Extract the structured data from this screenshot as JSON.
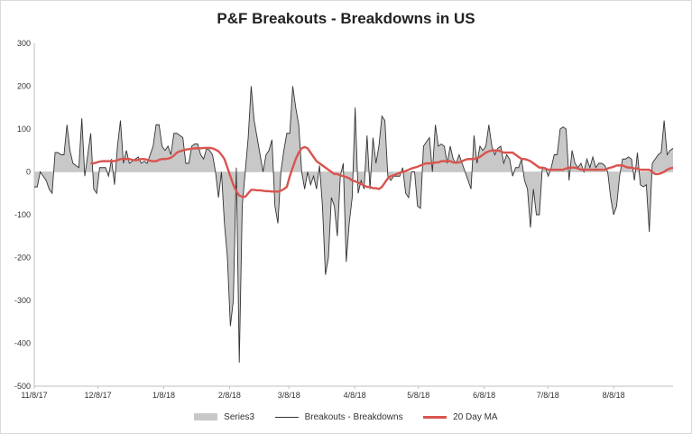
{
  "chart_data": {
    "type": "area",
    "title": "P&F Breakouts - Breakdowns in US",
    "xlabel": "",
    "ylabel": "",
    "ylim": [
      -500,
      300
    ],
    "yticks": [
      300,
      200,
      100,
      0,
      -100,
      -200,
      -300,
      -400,
      -500
    ],
    "xticks": [
      "11/8/17",
      "12/8/17",
      "1/8/18",
      "2/8/18",
      "3/8/18",
      "4/8/18",
      "5/8/18",
      "6/8/18",
      "7/8/18",
      "8/8/18"
    ],
    "x_start": "11/8/17",
    "x_end": "9/5/18",
    "grid": false,
    "legend_position": "bottom",
    "colors": {
      "area": "#c8c8c8",
      "line": "#333333",
      "ma": "#d9544f"
    },
    "series": [
      {
        "name": "Series3",
        "role": "area",
        "values": [
          -35,
          -35,
          0,
          -10,
          -20,
          -40,
          -50,
          45,
          45,
          40,
          40,
          110,
          50,
          20,
          15,
          10,
          125,
          -10,
          40,
          90,
          -40,
          -50,
          10,
          10,
          10,
          -10,
          30,
          -30,
          60,
          120,
          20,
          50,
          20,
          25,
          30,
          35,
          20,
          25,
          20,
          40,
          60,
          110,
          110,
          60,
          50,
          60,
          40,
          90,
          90,
          85,
          80,
          20,
          20,
          60,
          65,
          65,
          40,
          30,
          55,
          50,
          40,
          0,
          -60,
          0,
          -120,
          -200,
          -360,
          -300,
          10,
          -445,
          -80,
          0,
          80,
          200,
          120,
          80,
          40,
          0,
          40,
          50,
          75,
          -80,
          -120,
          0,
          50,
          90,
          90,
          200,
          150,
          110,
          0,
          -40,
          0,
          -30,
          -10,
          -40,
          15,
          -80,
          -240,
          -200,
          -60,
          -80,
          -150,
          -10,
          20,
          -210,
          -120,
          -60,
          150,
          -50,
          -20,
          -40,
          85,
          -40,
          80,
          20,
          60,
          130,
          120,
          -10,
          -20,
          -10,
          -10,
          -10,
          10,
          -50,
          -60,
          0,
          0,
          -80,
          -85,
          60,
          70,
          80,
          0,
          110,
          60,
          65,
          60,
          20,
          60,
          30,
          20,
          40,
          20,
          0,
          -20,
          -40,
          85,
          20,
          60,
          50,
          60,
          110,
          60,
          40,
          55,
          60,
          20,
          40,
          30,
          -10,
          10,
          10,
          30,
          -20,
          -40,
          -130,
          -40,
          -100,
          -100,
          10,
          10,
          -10,
          10,
          40,
          40,
          100,
          105,
          100,
          -20,
          50,
          20,
          10,
          20,
          0,
          30,
          10,
          35,
          10,
          20,
          20,
          15,
          0,
          -60,
          -100,
          -80,
          -10,
          30,
          30,
          35,
          30,
          -20,
          45,
          -30,
          -35,
          -30,
          -140,
          20,
          30,
          40,
          45,
          120,
          40,
          50,
          55
        ]
      },
      {
        "name": "Breakouts - Breakdowns",
        "role": "line",
        "values": [
          -35,
          -35,
          0,
          -10,
          -20,
          -40,
          -50,
          45,
          45,
          40,
          40,
          110,
          50,
          20,
          15,
          10,
          125,
          -10,
          40,
          90,
          -40,
          -50,
          10,
          10,
          10,
          -10,
          30,
          -30,
          60,
          120,
          20,
          50,
          20,
          25,
          30,
          35,
          20,
          25,
          20,
          40,
          60,
          110,
          110,
          60,
          50,
          60,
          40,
          90,
          90,
          85,
          80,
          20,
          20,
          60,
          65,
          65,
          40,
          30,
          55,
          50,
          40,
          0,
          -60,
          0,
          -120,
          -200,
          -360,
          -300,
          10,
          -445,
          -80,
          0,
          80,
          200,
          120,
          80,
          40,
          0,
          40,
          50,
          75,
          -80,
          -120,
          0,
          50,
          90,
          90,
          200,
          150,
          110,
          0,
          -40,
          0,
          -30,
          -10,
          -40,
          15,
          -80,
          -240,
          -200,
          -60,
          -80,
          -150,
          -10,
          20,
          -210,
          -120,
          -60,
          150,
          -50,
          -20,
          -40,
          85,
          -40,
          80,
          20,
          60,
          130,
          120,
          -10,
          -20,
          -10,
          -10,
          -10,
          10,
          -50,
          -60,
          0,
          0,
          -80,
          -85,
          60,
          70,
          80,
          0,
          110,
          60,
          65,
          60,
          20,
          60,
          30,
          20,
          40,
          20,
          0,
          -20,
          -40,
          85,
          20,
          60,
          50,
          60,
          110,
          60,
          40,
          55,
          60,
          20,
          40,
          30,
          -10,
          10,
          10,
          30,
          -20,
          -40,
          -130,
          -40,
          -100,
          -100,
          10,
          10,
          -10,
          10,
          40,
          40,
          100,
          105,
          100,
          -20,
          50,
          20,
          10,
          20,
          0,
          30,
          10,
          35,
          10,
          20,
          20,
          15,
          0,
          -60,
          -100,
          -80,
          -10,
          30,
          30,
          35,
          30,
          -20,
          45,
          -30,
          -35,
          -30,
          -140,
          20,
          30,
          40,
          45,
          120,
          40,
          50,
          55
        ]
      },
      {
        "name": "20 Day MA",
        "role": "ma",
        "values": [
          null,
          null,
          null,
          null,
          null,
          null,
          null,
          null,
          null,
          null,
          null,
          null,
          null,
          null,
          null,
          null,
          null,
          null,
          null,
          20,
          20,
          22,
          24,
          25,
          25,
          25,
          26,
          25,
          27,
          30,
          30,
          30,
          30,
          28,
          27,
          28,
          30,
          30,
          28,
          26,
          25,
          25,
          28,
          30,
          30,
          31,
          33,
          38,
          45,
          48,
          50,
          52,
          53,
          54,
          55,
          55,
          55,
          56,
          56,
          56,
          55,
          52,
          48,
          40,
          30,
          10,
          -10,
          -30,
          -45,
          -55,
          -58,
          -58,
          -50,
          -42,
          -42,
          -43,
          -43,
          -44,
          -45,
          -45,
          -46,
          -46,
          -46,
          -44,
          -40,
          -35,
          -10,
          10,
          30,
          45,
          55,
          58,
          55,
          45,
          35,
          25,
          20,
          15,
          10,
          5,
          0,
          -5,
          -5,
          -8,
          -10,
          -12,
          -15,
          -20,
          -22,
          -25,
          -28,
          -32,
          -35,
          -35,
          -38,
          -38,
          -40,
          -35,
          -25,
          -15,
          -10,
          -8,
          -5,
          -2,
          0,
          2,
          5,
          8,
          10,
          12,
          15,
          18,
          20,
          20,
          20,
          22,
          22,
          25,
          25,
          25,
          25,
          22,
          22,
          22,
          25,
          28,
          30,
          30,
          30,
          32,
          35,
          40,
          45,
          48,
          50,
          50,
          50,
          48,
          45,
          45,
          45,
          45,
          40,
          35,
          30,
          30,
          28,
          25,
          20,
          15,
          10,
          10,
          8,
          5,
          5,
          5,
          5,
          5,
          5,
          8,
          10,
          10,
          10,
          8,
          5,
          5,
          5,
          5,
          5,
          5,
          5,
          5,
          5,
          8,
          10,
          12,
          15,
          15,
          15,
          12,
          10,
          10,
          8,
          8,
          5,
          5,
          5,
          5,
          0,
          -5,
          -5,
          -3,
          0,
          5,
          8,
          10
        ]
      }
    ]
  },
  "legend": {
    "items": [
      {
        "label": "Series3"
      },
      {
        "label": "Breakouts - Breakdowns"
      },
      {
        "label": "20 Day MA"
      }
    ]
  }
}
